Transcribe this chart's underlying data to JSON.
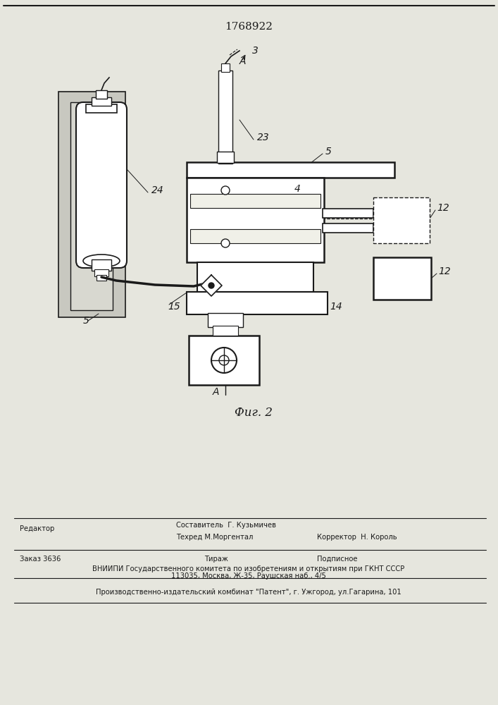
{
  "patent_number": "1768922",
  "fig_label": "Фиг. 2",
  "bg_color": "#e6e6de",
  "line_color": "#1a1a1a",
  "page_width": 7.07,
  "page_height": 10.0,
  "footer": {
    "line1_left": "Редактор",
    "line1_mid": "Составитель  Г. Кузьмичев",
    "line2_mid": "Техред М.Моргентал",
    "line2_right": "Корректор  Н. Король",
    "line3_left": "Заказ 3636",
    "line3_mid": "Тираж",
    "line3_right": "Подписное",
    "line4": "ВНИИПИ Государственного комитета по изобретениям и открытиям при ГКНТ СССР",
    "line5": "113035, Москва, Ж-35, Раушская наб., 4/5",
    "line6": "Производственно-издательский комбинат \"Патент\", г. Ужгород, ул.Гагарина, 101"
  }
}
